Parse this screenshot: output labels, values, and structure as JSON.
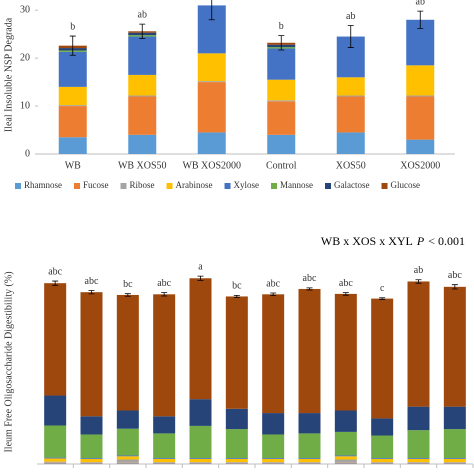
{
  "chart_data": [
    {
      "type": "stacked_bar",
      "y_label": "Ileal Insoluble NSP Degrada",
      "categories": [
        "WB",
        "WB XOS50",
        "WB XOS2000",
        "Control",
        "XOS50",
        "XOS2000"
      ],
      "ylim": [
        0,
        31.5
      ],
      "yticks": [
        0,
        10,
        20,
        30
      ],
      "legend": "bottom",
      "series": [
        {
          "name": "Rhamnose",
          "color": "#5b9bd5",
          "values": [
            3.5,
            4,
            4.5,
            4,
            4.5,
            3
          ]
        },
        {
          "name": "Fucose",
          "color": "#ed7d31",
          "values": [
            6.5,
            8,
            10.5,
            7,
            7.5,
            9
          ]
        },
        {
          "name": "Ribose",
          "color": "#a5a5a5",
          "values": [
            0.2,
            0.2,
            0.2,
            0.2,
            0.2,
            0.2
          ]
        },
        {
          "name": "Arabinose",
          "color": "#ffc000",
          "values": [
            3.8,
            4.3,
            5.8,
            4.3,
            3.8,
            6.3
          ]
        },
        {
          "name": "Xylose",
          "color": "#4472c4",
          "values": [
            7.3,
            8,
            10,
            6.5,
            8.5,
            9.5
          ]
        },
        {
          "name": "Mannose",
          "color": "#70ad47",
          "values": [
            0.3,
            0.3,
            0,
            0.3,
            0,
            0
          ]
        },
        {
          "name": "Galactose",
          "color": "#264478",
          "values": [
            0.5,
            0.5,
            0,
            0.5,
            0,
            0
          ]
        },
        {
          "name": "Glucose",
          "color": "#9e480e",
          "values": [
            0.5,
            0.3,
            0,
            0.4,
            0,
            0
          ]
        }
      ],
      "errors": [
        2,
        1.5,
        3,
        1.5,
        2.3,
        1.8
      ],
      "letters": [
        "b",
        "ab",
        null,
        "b",
        "ab",
        "ab"
      ]
    },
    {
      "type": "stacked_bar",
      "title": "WB x XOS x XYL",
      "title_stat": "P",
      "title_value": "< 0.001",
      "y_label": "Ileum Free Oligosaccharide Digestibility (%)",
      "categories": [
        null,
        null,
        null,
        null,
        null,
        null,
        null,
        null,
        null,
        null,
        null,
        null
      ],
      "ylim": [
        0,
        93
      ],
      "series": [
        {
          "color": "#5b9bd5",
          "values": [
            0.3,
            0.3,
            0.3,
            0.3,
            0.3,
            0.3,
            0.3,
            0.3,
            0.3,
            0.3,
            0.3,
            0.3
          ]
        },
        {
          "color": "#ed7d31",
          "values": [
            0.3,
            0.3,
            0.3,
            0.3,
            0.3,
            0.3,
            0.3,
            0.3,
            0.3,
            0.3,
            0.3,
            0.3
          ]
        },
        {
          "color": "#a5a5a5",
          "values": [
            0.5,
            0.3,
            1.5,
            0.3,
            0.3,
            0.3,
            0.3,
            0.3,
            1.5,
            0.3,
            0.3,
            0.3
          ]
        },
        {
          "color": "#ffc000",
          "values": [
            1.5,
            1.5,
            1.5,
            1.5,
            1.5,
            1.5,
            1.5,
            1.5,
            1.5,
            1.5,
            1.5,
            1.5
          ]
        },
        {
          "color": "#4472c4",
          "values": [
            0.4,
            0.4,
            0.4,
            0.4,
            0.4,
            0.4,
            0.4,
            0.4,
            0.4,
            0.4,
            0.4,
            0.4
          ]
        },
        {
          "color": "#70ad47",
          "values": [
            15,
            11,
            12.5,
            11.5,
            15,
            13.5,
            11,
            11.5,
            11,
            10.5,
            13,
            13.5
          ]
        },
        {
          "color": "#264478",
          "values": [
            14,
            8.5,
            8.5,
            8,
            12.5,
            9.5,
            10,
            9.5,
            10,
            8,
            11,
            10.5
          ]
        },
        {
          "color": "#9e480e",
          "values": [
            52.5,
            58,
            54,
            57,
            56.5,
            52.5,
            55.5,
            58,
            54.5,
            56,
            58.5,
            56
          ]
        }
      ],
      "errors": [
        1,
        0.8,
        0.6,
        0.8,
        1,
        0.5,
        0.6,
        0.5,
        0.6,
        0.4,
        0.8,
        1
      ],
      "letters": [
        "abc",
        "abc",
        "bc",
        "abc",
        "a",
        "bc",
        "abc",
        "abc",
        "abc",
        "c",
        "ab",
        "abc"
      ]
    }
  ]
}
